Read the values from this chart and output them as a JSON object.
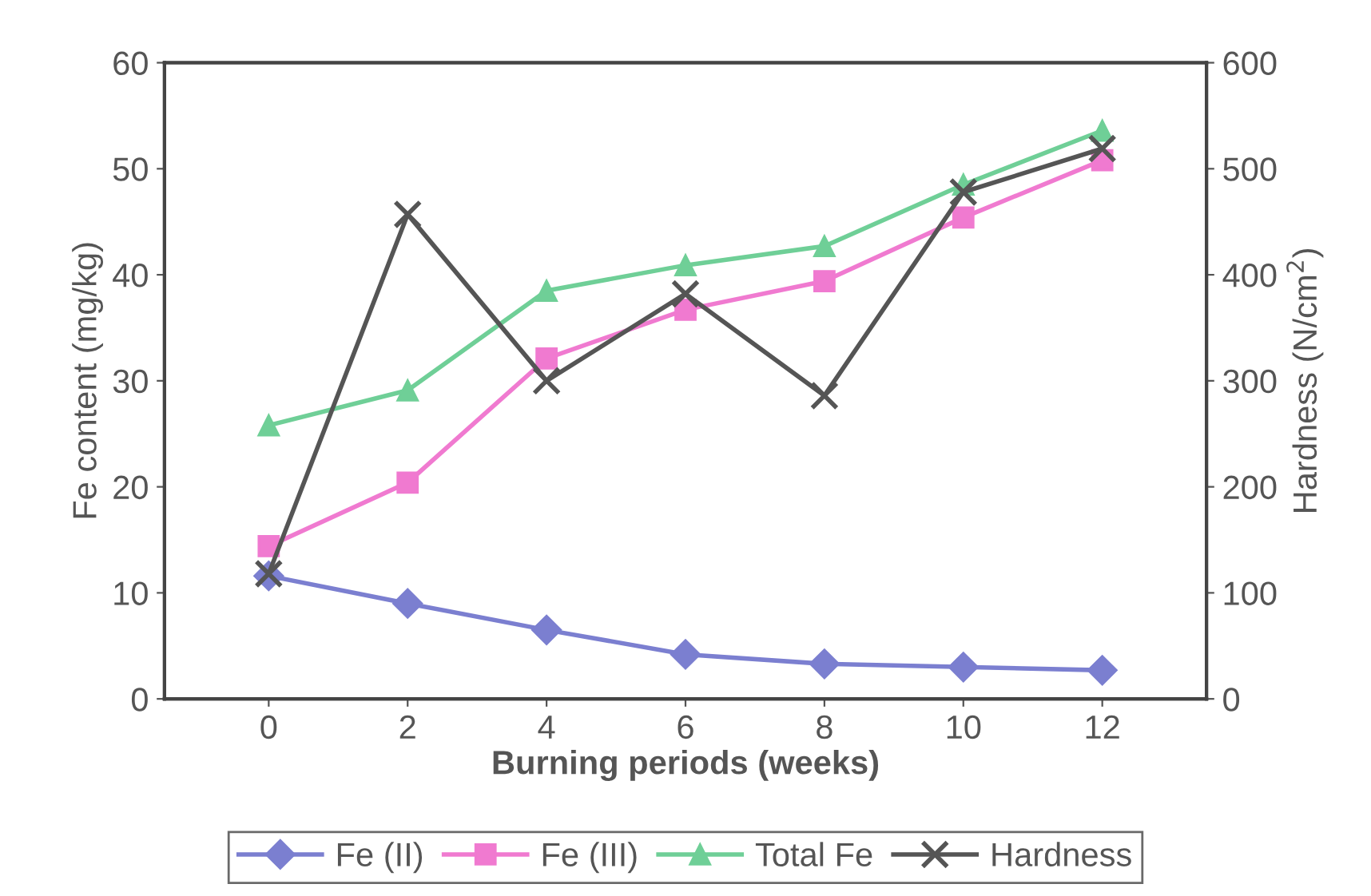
{
  "chart_data": {
    "type": "line",
    "xlabel": "Burning periods (weeks)",
    "ylabel": "Fe content (mg/kg)",
    "y2label": "Hardness (N/cm$^{2}$)",
    "x": [
      0,
      2,
      4,
      6,
      8,
      10,
      12
    ],
    "xlim": [
      -1.5,
      13.5
    ],
    "xticks": [
      0,
      2,
      4,
      6,
      8,
      10,
      12
    ],
    "ylim": [
      0,
      60
    ],
    "yticks": [
      0,
      10,
      20,
      30,
      40,
      50,
      60
    ],
    "y2lim": [
      0,
      600
    ],
    "y2ticks": [
      0,
      100,
      200,
      300,
      400,
      500,
      600
    ],
    "grid": false,
    "legend": "bottom",
    "line_style": "solid",
    "series": [
      {
        "name": "Fe (II)",
        "color": "#7b7fd0",
        "marker": "diamond",
        "values": [
          11.6,
          9.0,
          6.5,
          4.2,
          3.3,
          3.0,
          2.7
        ]
      },
      {
        "name": "Fe (III)",
        "color": "#f07ad0",
        "marker": "square",
        "values": [
          14.4,
          20.4,
          32.1,
          36.7,
          39.4,
          45.4,
          50.8
        ]
      },
      {
        "name": "Total Fe",
        "color": "#6fcf97",
        "marker": "triangle",
        "values": [
          25.8,
          29.1,
          38.5,
          40.9,
          42.7,
          48.5,
          53.6
        ]
      },
      {
        "name": "Hardness",
        "color": "#555555",
        "marker": "cross",
        "axis": "y2",
        "values": [
          118,
          457,
          300,
          382,
          286,
          478,
          519
        ]
      }
    ]
  }
}
